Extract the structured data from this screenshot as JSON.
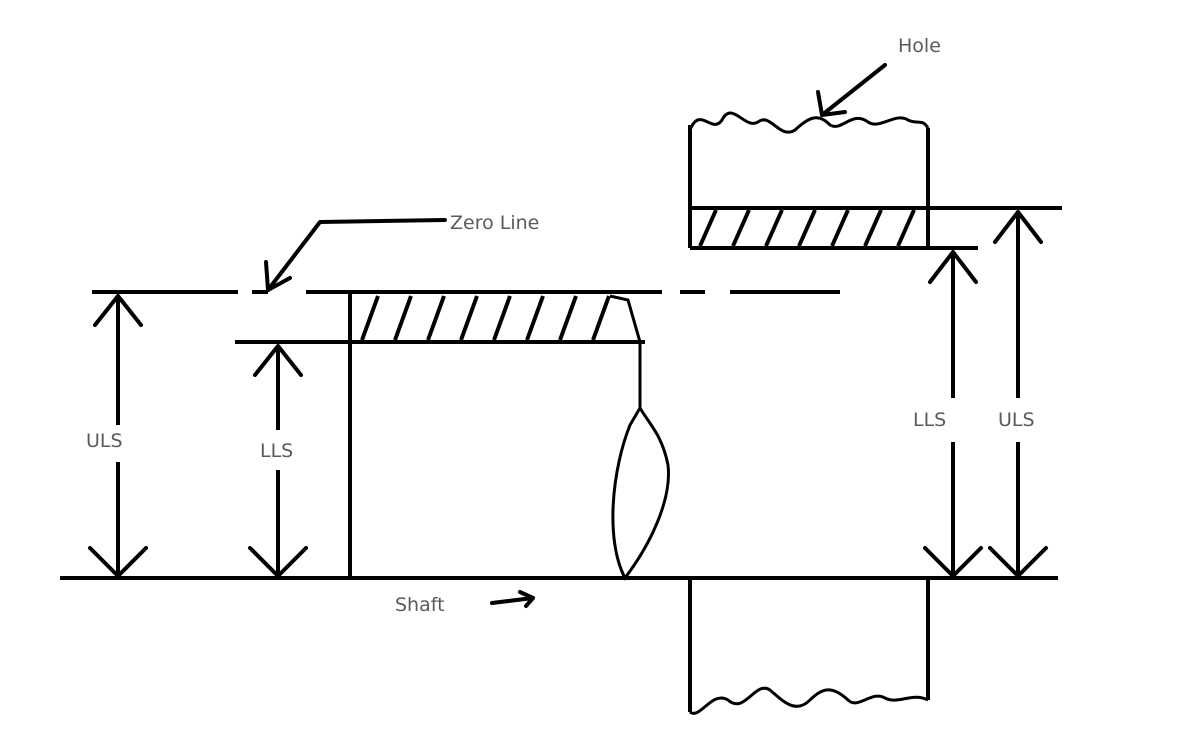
{
  "labels": {
    "hole": "Hole",
    "zero_line": "Zero Line",
    "shaft": "Shaft",
    "uls_outer_left": "ULS",
    "lls_inner_left": "LLS",
    "lls_inner_right": "LLS",
    "uls_outer_right": "ULS"
  }
}
